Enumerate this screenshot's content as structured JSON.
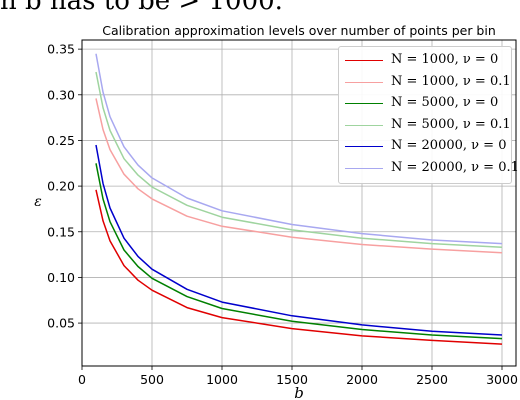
{
  "header_snippet": "n b has to be > 1000.",
  "chart_data": {
    "type": "line",
    "title": "Calibration approximation levels over number of points per bin",
    "xlabel": "b",
    "ylabel": "ε",
    "xlim": [
      0,
      3100
    ],
    "ylim": [
      0.003,
      0.36
    ],
    "x_ticks": [
      0,
      500,
      1000,
      1500,
      2000,
      2500,
      3000
    ],
    "y_ticks": [
      0.05,
      0.1,
      0.15,
      0.2,
      0.25,
      0.3,
      0.35
    ],
    "x_tick_labels": [
      "0",
      "500",
      "1000",
      "1500",
      "2000",
      "2500",
      "3000"
    ],
    "y_tick_labels": [
      "0.05",
      "0.10",
      "0.15",
      "0.20",
      "0.25",
      "0.30",
      "0.35"
    ],
    "grid": true,
    "legend_position": "top-right",
    "x": [
      100,
      150,
      200,
      300,
      400,
      500,
      750,
      1000,
      1500,
      2000,
      2500,
      3000
    ],
    "series": [
      {
        "name": "N = 1000, ν = 0",
        "color": "#e00000",
        "values": [
          0.196,
          0.162,
          0.14,
          0.113,
          0.097,
          0.086,
          0.067,
          0.056,
          0.044,
          0.036,
          0.031,
          0.027
        ]
      },
      {
        "name": "N = 1000, ν = 0.1",
        "color": "#f7a0a0",
        "values": [
          0.296,
          0.262,
          0.24,
          0.213,
          0.197,
          0.186,
          0.167,
          0.156,
          0.144,
          0.136,
          0.131,
          0.127
        ]
      },
      {
        "name": "N = 5000, ν = 0",
        "color": "#008000",
        "values": [
          0.225,
          0.186,
          0.161,
          0.13,
          0.112,
          0.099,
          0.079,
          0.066,
          0.052,
          0.043,
          0.037,
          0.033
        ]
      },
      {
        "name": "N = 5000, ν = 0.1",
        "color": "#9fd49f",
        "values": [
          0.325,
          0.286,
          0.261,
          0.23,
          0.212,
          0.199,
          0.179,
          0.166,
          0.152,
          0.143,
          0.137,
          0.133
        ]
      },
      {
        "name": "N = 20000, ν = 0",
        "color": "#0000cc",
        "values": [
          0.245,
          0.203,
          0.176,
          0.143,
          0.123,
          0.109,
          0.087,
          0.073,
          0.058,
          0.048,
          0.041,
          0.037
        ]
      },
      {
        "name": "N = 20000, ν = 0.1",
        "color": "#a8a8f0",
        "values": [
          0.345,
          0.303,
          0.276,
          0.243,
          0.223,
          0.209,
          0.187,
          0.173,
          0.158,
          0.148,
          0.141,
          0.137
        ]
      }
    ]
  }
}
